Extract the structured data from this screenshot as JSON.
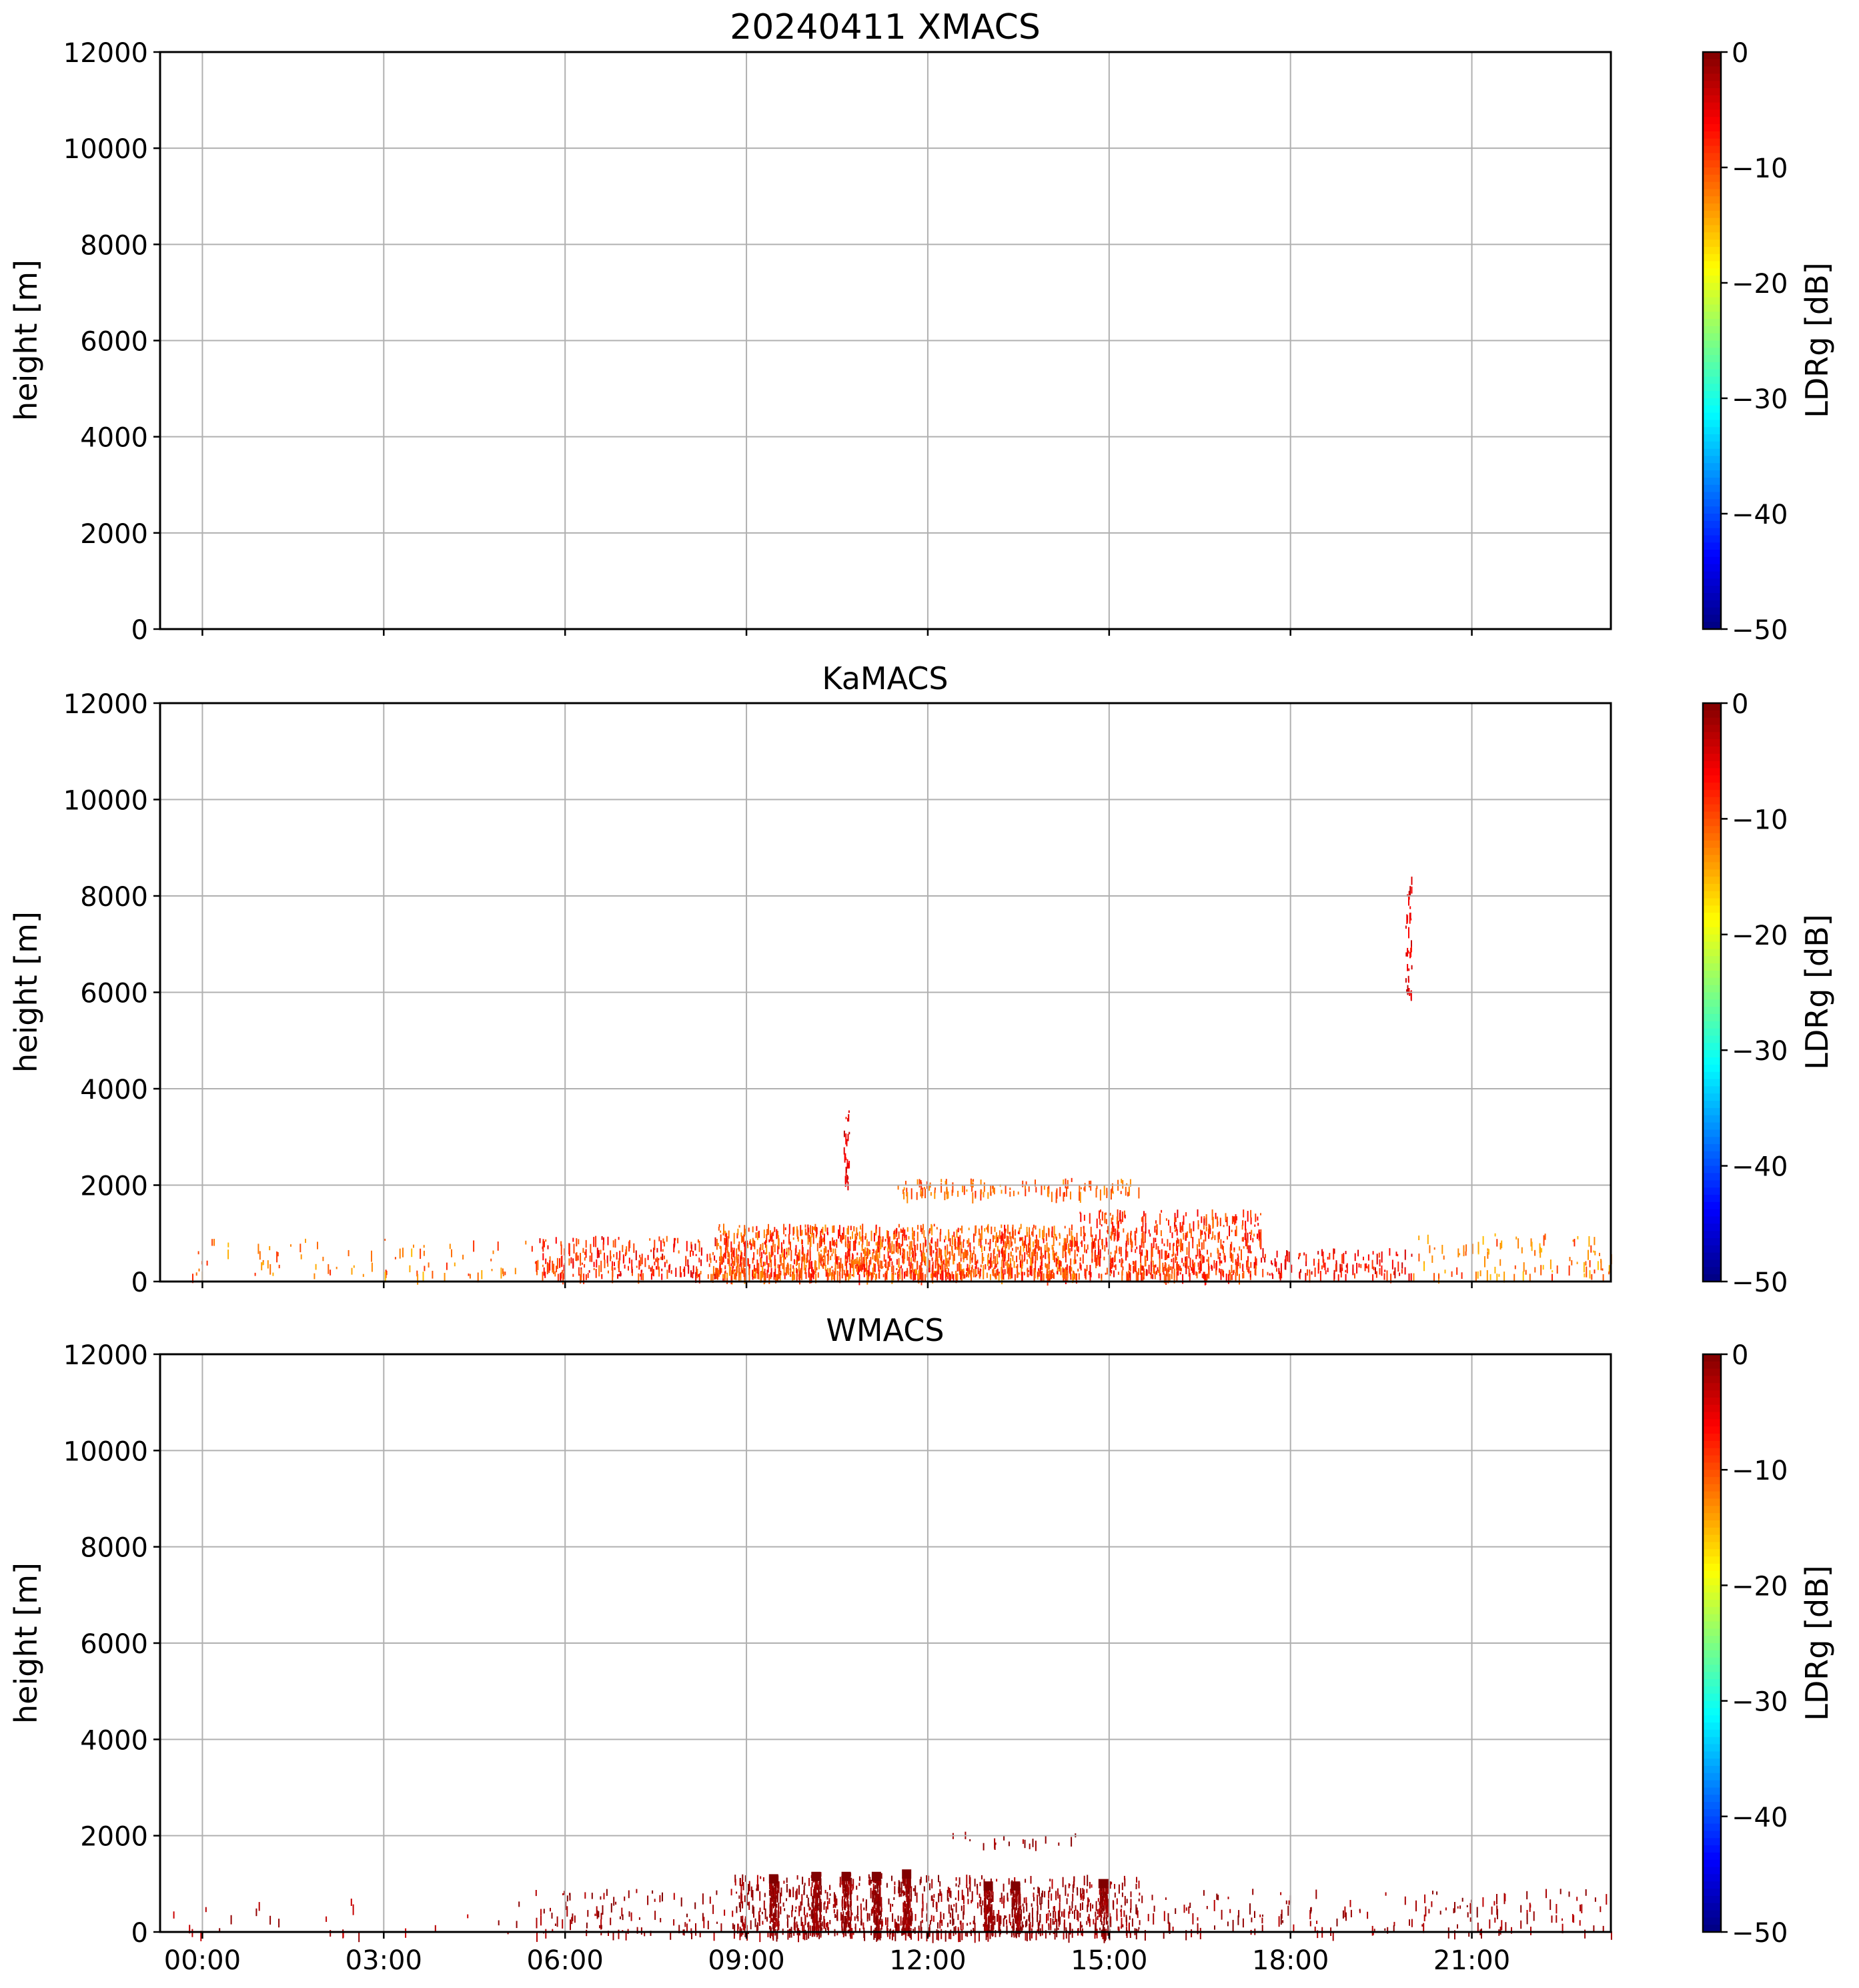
{
  "chart_data": [
    {
      "type": "heatmap",
      "title": "20240411 XMACS",
      "xlabel": "",
      "ylabel": "height [m]",
      "x_range_hours": [
        -0.7,
        23.3
      ],
      "ylim": [
        0,
        12000
      ],
      "xticks": [
        "00:00",
        "03:00",
        "06:00",
        "09:00",
        "12:00",
        "15:00",
        "18:00",
        "21:00"
      ],
      "yticks": [
        "0",
        "2000",
        "4000",
        "6000",
        "8000",
        "10000",
        "12000"
      ],
      "grid": true,
      "colorbar": {
        "label": "LDRg [dB]",
        "range": [
          -50,
          0
        ],
        "ticks": [
          "0",
          "−10",
          "−20",
          "−30",
          "−40",
          "−50"
        ],
        "colormap": "jet"
      },
      "echo_regions": []
    },
    {
      "type": "heatmap",
      "title": "KaMACS",
      "xlabel": "",
      "ylabel": "height [m]",
      "x_range_hours": [
        -0.7,
        23.3
      ],
      "ylim": [
        0,
        12000
      ],
      "xticks": [
        "00:00",
        "03:00",
        "06:00",
        "09:00",
        "12:00",
        "15:00",
        "18:00",
        "21:00"
      ],
      "yticks": [
        "0",
        "2000",
        "4000",
        "6000",
        "8000",
        "10000",
        "12000"
      ],
      "grid": true,
      "colorbar": {
        "label": "LDRg [dB]",
        "range": [
          -50,
          0
        ],
        "ticks": [
          "0",
          "−10",
          "−20",
          "−30",
          "−40",
          "−50"
        ],
        "colormap": "jet"
      },
      "echo_regions": [
        {
          "t0": -0.6,
          "t1": 5.5,
          "h0": 150,
          "h1": 900,
          "ldr": [
            -16,
            -8
          ],
          "density": 0.06
        },
        {
          "t0": 5.5,
          "t1": 8.5,
          "h0": 150,
          "h1": 950,
          "ldr": [
            -12,
            -4
          ],
          "density": 0.35
        },
        {
          "t0": 8.5,
          "t1": 14.5,
          "h0": 150,
          "h1": 1200,
          "ldr": [
            -14,
            -6
          ],
          "density": 0.75
        },
        {
          "t0": 11.5,
          "t1": 15.5,
          "h0": 1850,
          "h1": 2150,
          "ldr": [
            -14,
            -8
          ],
          "density": 0.35
        },
        {
          "t0": 14.5,
          "t1": 17.5,
          "h0": 150,
          "h1": 1500,
          "ldr": [
            -12,
            -5
          ],
          "density": 0.45
        },
        {
          "t0": 17.5,
          "t1": 20.0,
          "h0": 150,
          "h1": 700,
          "ldr": [
            -10,
            -3
          ],
          "density": 0.3
        },
        {
          "t0": 20.0,
          "t1": 23.3,
          "h0": 150,
          "h1": 1000,
          "ldr": [
            -16,
            -8
          ],
          "density": 0.12
        },
        {
          "t0": 10.6,
          "t1": 10.7,
          "h0": 2000,
          "h1": 3600,
          "ldr": [
            -8,
            -3
          ],
          "density": 0.5
        },
        {
          "t0": 19.9,
          "t1": 20.0,
          "h0": 6000,
          "h1": 8400,
          "ldr": [
            -8,
            -3
          ],
          "density": 0.5
        }
      ]
    },
    {
      "type": "heatmap",
      "title": "WMACS",
      "xlabel": "",
      "ylabel": "height [m]",
      "x_range_hours": [
        -0.7,
        23.3
      ],
      "ylim": [
        0,
        12000
      ],
      "xticks": [
        "00:00",
        "03:00",
        "06:00",
        "09:00",
        "12:00",
        "15:00",
        "18:00",
        "21:00"
      ],
      "yticks": [
        "0",
        "2000",
        "4000",
        "6000",
        "8000",
        "10000",
        "12000"
      ],
      "grid": true,
      "colorbar": {
        "label": "LDRg [dB]",
        "range": [
          -50,
          0
        ],
        "ticks": [
          "0",
          "−10",
          "−20",
          "−30",
          "−40",
          "−50"
        ],
        "colormap": "jet"
      },
      "echo_regions": [
        {
          "t0": -0.6,
          "t1": 5.5,
          "h0": 0,
          "h1": 700,
          "ldr": [
            -4,
            0
          ],
          "density": 0.02
        },
        {
          "t0": 5.5,
          "t1": 8.8,
          "h0": 0,
          "h1": 900,
          "ldr": [
            -3,
            0
          ],
          "density": 0.12
        },
        {
          "t0": 8.8,
          "t1": 15.5,
          "h0": 0,
          "h1": 1200,
          "ldr": [
            -3,
            0
          ],
          "density": 0.35
        },
        {
          "t0": 15.5,
          "t1": 23.3,
          "h0": 0,
          "h1": 900,
          "ldr": [
            -3,
            0
          ],
          "density": 0.08
        },
        {
          "t0": 12.0,
          "t1": 14.5,
          "h0": 1800,
          "h1": 2100,
          "ldr": [
            -3,
            0
          ],
          "density": 0.08
        }
      ],
      "echo_columns": [
        {
          "t": 9.45,
          "h1": 1200
        },
        {
          "t": 10.15,
          "h1": 1250
        },
        {
          "t": 10.65,
          "h1": 1250
        },
        {
          "t": 11.15,
          "h1": 1250
        },
        {
          "t": 11.65,
          "h1": 1300
        },
        {
          "t": 13.0,
          "h1": 1050
        },
        {
          "t": 13.45,
          "h1": 1050
        },
        {
          "t": 14.9,
          "h1": 1100
        }
      ]
    }
  ]
}
